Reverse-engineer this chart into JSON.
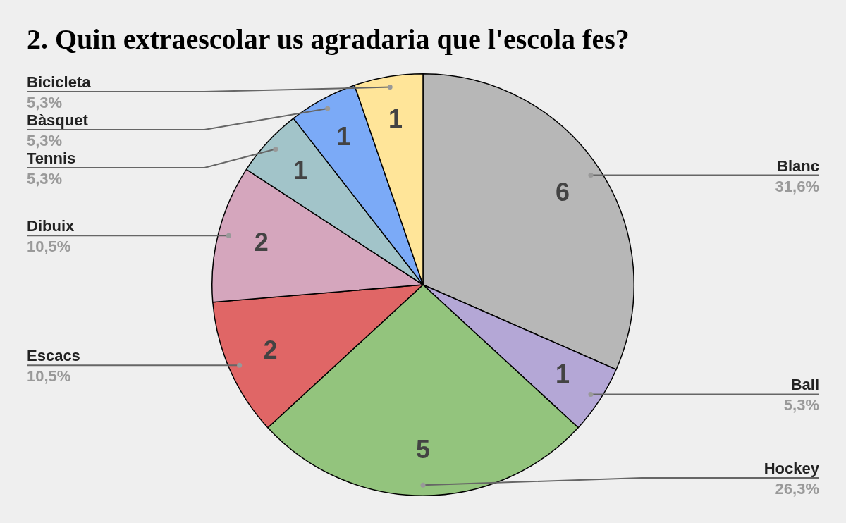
{
  "chart_data": {
    "type": "pie",
    "title": "2. Quin extraescolar us agradaria que l'escola fes?",
    "categories": [
      "Blanc",
      "Ball",
      "Hockey",
      "Escacs",
      "Dibuix",
      "Tennis",
      "Bàsquet",
      "Bicicleta"
    ],
    "values": [
      6,
      1,
      5,
      2,
      2,
      1,
      1,
      1
    ],
    "colors": [
      "#b7b7b7",
      "#b4a7d6",
      "#93c47d",
      "#e06666",
      "#d5a6bd",
      "#a2c4c9",
      "#7baaf7",
      "#ffe599"
    ],
    "annotations": [
      {
        "text": "31,6%",
        "x": "Blanc"
      },
      {
        "text": "5,3%",
        "x": "Ball"
      },
      {
        "text": "26,3%",
        "x": "Hockey"
      },
      {
        "text": "10,5%",
        "x": "Escacs"
      },
      {
        "text": "10,5%",
        "x": "Dibuix"
      },
      {
        "text": "5,3%",
        "x": "Tennis"
      },
      {
        "text": "5,3%",
        "x": "Bàsquet"
      },
      {
        "text": "5,3%",
        "x": "Bicicleta"
      }
    ],
    "data_labels": true,
    "legend": false
  }
}
